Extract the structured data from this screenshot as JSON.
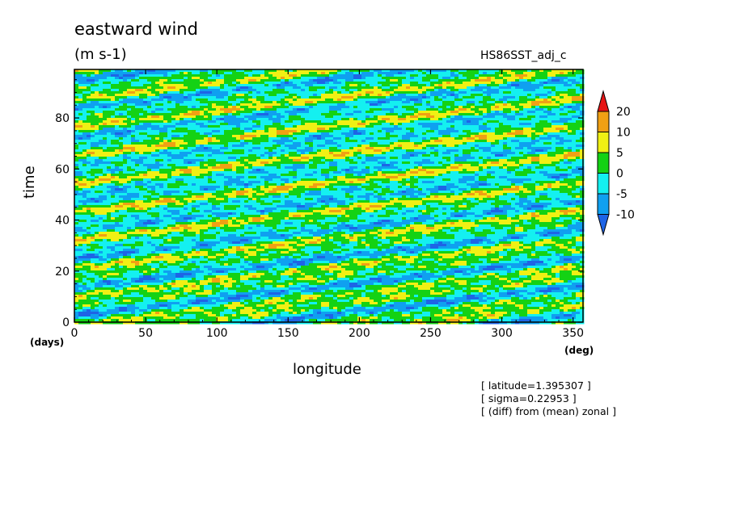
{
  "header": {
    "title": "eastward wind",
    "units": "(m s-1)",
    "run_name": "HS86SST_adj_c"
  },
  "notes": [
    "[ latitude=1.395307 ]",
    "[ sigma=0.22953 ]",
    "[ (diff) from (mean) zonal ]"
  ],
  "chart_data": {
    "type": "heatmap",
    "title": "eastward wind",
    "xlabel": "longitude",
    "ylabel": "time",
    "xunit": "(deg)",
    "yunit": "(days)",
    "xlim": [
      0,
      357
    ],
    "ylim": [
      0,
      99
    ],
    "x_ticks": [
      0,
      50,
      100,
      150,
      200,
      250,
      300,
      350
    ],
    "y_ticks": [
      0,
      20,
      40,
      60,
      80
    ],
    "colorbar": {
      "levels": [
        -10,
        -5,
        0,
        5,
        10,
        20
      ],
      "labels": [
        "20",
        "10",
        "5",
        "0",
        "-5",
        "-10"
      ],
      "colors": [
        "#1e64e6",
        "#0fa0f0",
        "#14f0f0",
        "#14d214",
        "#f0f014",
        "#f0a014",
        "#e61414"
      ],
      "extend": "both"
    },
    "pattern": "eastward-propagating bands sloping upward to the right (Kelvin-wave-like)"
  }
}
